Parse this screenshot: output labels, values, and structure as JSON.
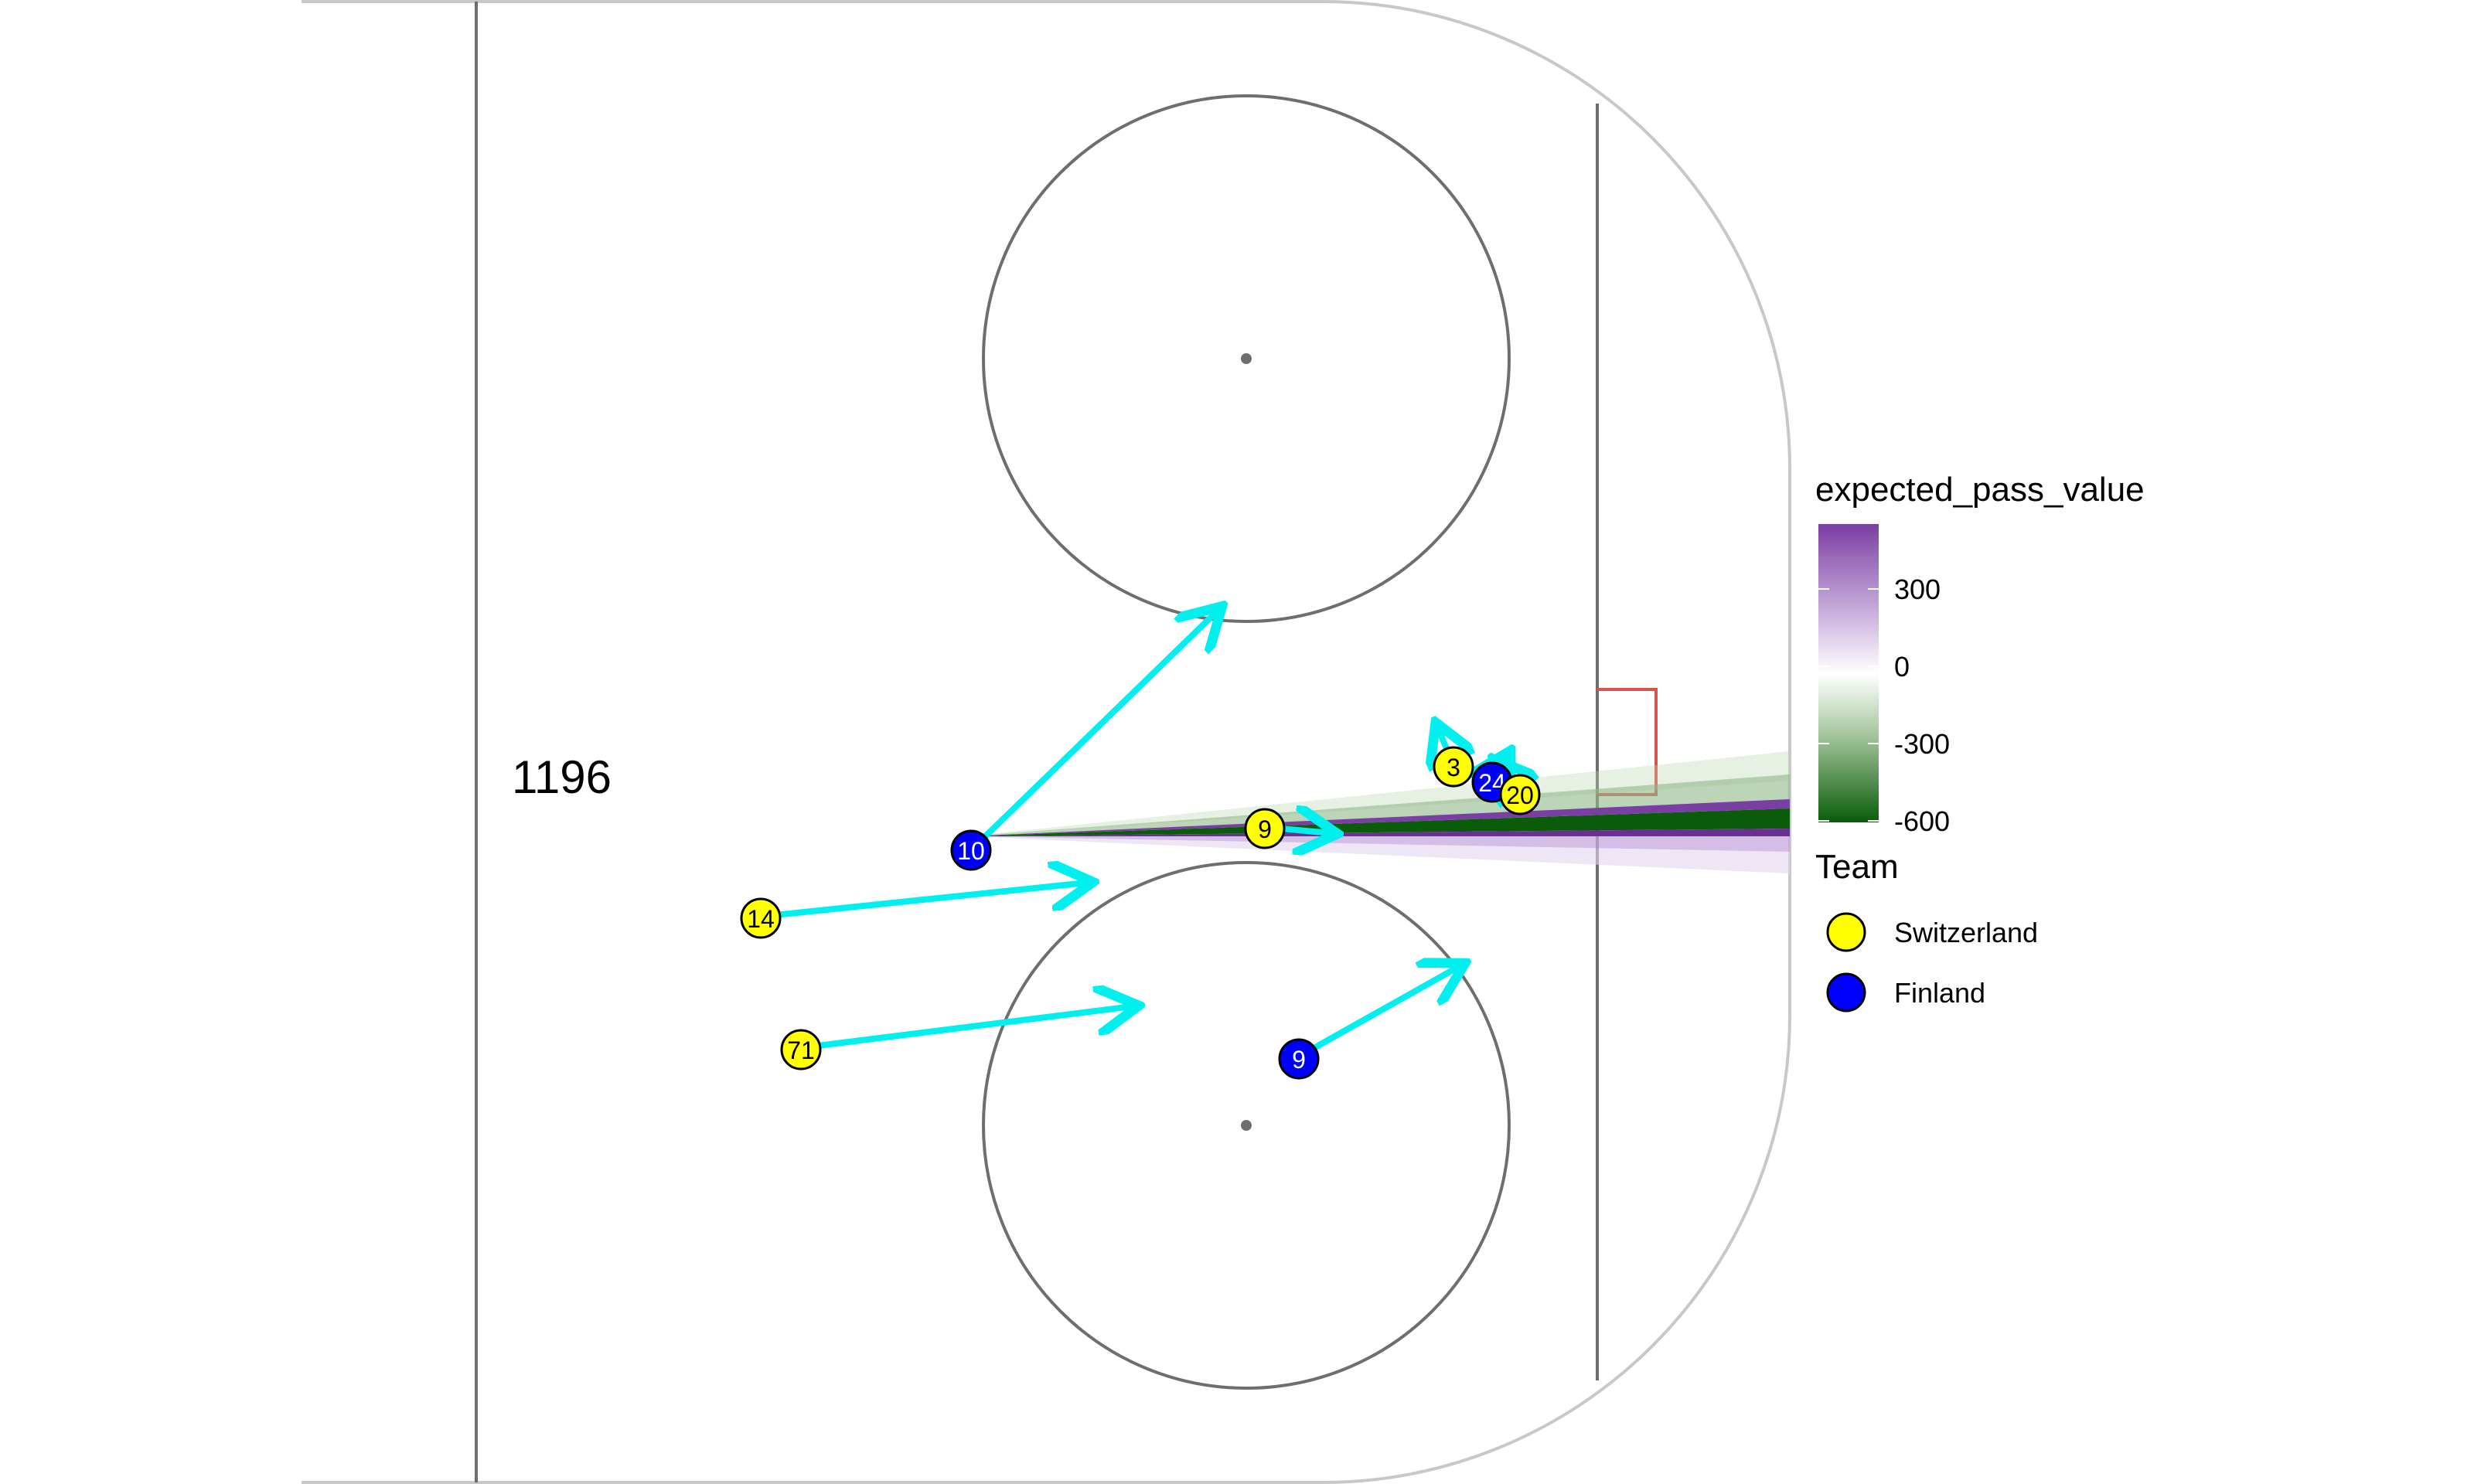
{
  "frame_label": "1196",
  "colors": {
    "rink_line": "#6e6e6e",
    "boards": "#c8c8c8",
    "crease": "#d9534f",
    "arrow": "#00f0f0",
    "switzerland": "#ffff00",
    "finland": "#0000ff",
    "positive": "#7a3fa3",
    "negative": "#0a5c0a"
  },
  "legend_value": {
    "title": "expected_pass_value",
    "ticks": [
      "300",
      "0",
      "-300",
      "-600"
    ]
  },
  "legend_team": {
    "title": "Team",
    "items": [
      {
        "label": "Switzerland",
        "team": "switzerland"
      },
      {
        "label": "Finland",
        "team": "finland"
      }
    ]
  },
  "players": [
    {
      "number": "10",
      "team": "finland"
    },
    {
      "number": "14",
      "team": "switzerland"
    },
    {
      "number": "71",
      "team": "switzerland"
    },
    {
      "number": "9",
      "team": "finland"
    },
    {
      "number": "9",
      "team": "switzerland"
    },
    {
      "number": "3",
      "team": "switzerland"
    },
    {
      "number": "24",
      "team": "finland"
    },
    {
      "number": "20",
      "team": "switzerland"
    }
  ]
}
